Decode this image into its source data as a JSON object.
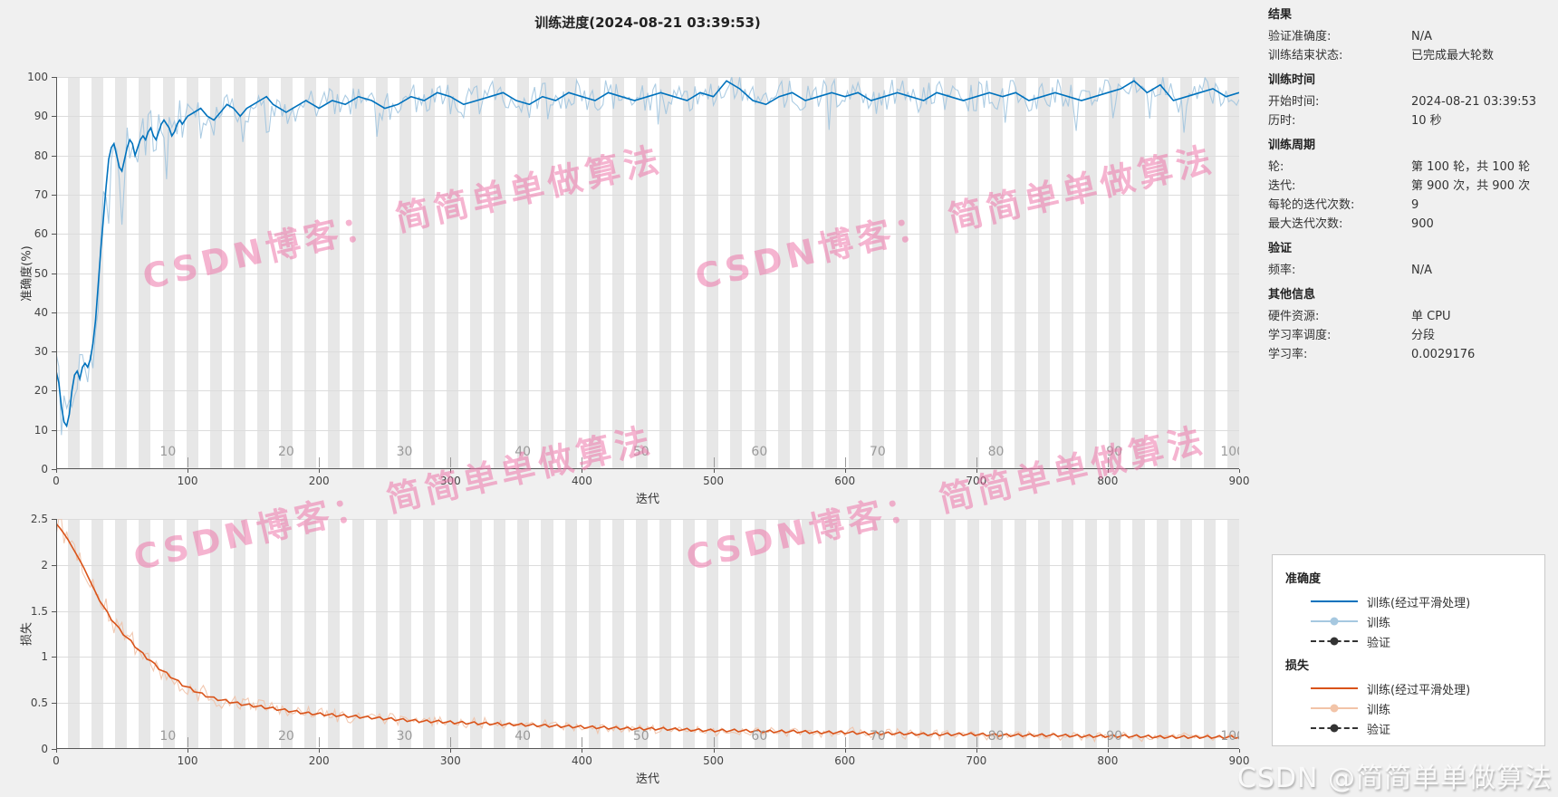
{
  "title": "训练进度(2024-08-21 03:39:53)",
  "watermark": {
    "diagonal_text": "CSDN博客： 简简单单做算法",
    "corner_text": "CSDN @简简单单做算法",
    "diagonal_color": "rgba(236,118,170,0.55)"
  },
  "results_panel": {
    "sections": [
      {
        "heading": "结果",
        "rows": [
          {
            "label": "验证准确度:",
            "value": "N/A"
          },
          {
            "label": "训练结束状态:",
            "value": "已完成最大轮数"
          }
        ]
      },
      {
        "heading": "训练时间",
        "rows": [
          {
            "label": "开始时间:",
            "value": "2024-08-21 03:39:53"
          },
          {
            "label": "历时:",
            "value": "10 秒"
          }
        ]
      },
      {
        "heading": "训练周期",
        "rows": [
          {
            "label": "轮:",
            "value": "第 100 轮，共 100 轮"
          },
          {
            "label": "迭代:",
            "value": "第 900 次，共 900 次"
          },
          {
            "label": "每轮的迭代次数:",
            "value": "9"
          },
          {
            "label": "最大迭代次数:",
            "value": "900"
          }
        ]
      },
      {
        "heading": "验证",
        "rows": [
          {
            "label": "频率:",
            "value": "N/A"
          }
        ]
      },
      {
        "heading": "其他信息",
        "rows": [
          {
            "label": "硬件资源:",
            "value": "单 CPU"
          },
          {
            "label": "学习率调度:",
            "value": "分段"
          },
          {
            "label": "学习率:",
            "value": "0.0029176"
          }
        ]
      }
    ]
  },
  "legend": {
    "groups": [
      {
        "heading": "准确度",
        "items": [
          {
            "label": "训练(经过平滑处理)",
            "style": "solid",
            "color": "#0072BD"
          },
          {
            "label": "训练",
            "style": "marker",
            "color": "#a6c8e0"
          },
          {
            "label": "验证",
            "style": "dashed-marker",
            "color": "#333333"
          }
        ]
      },
      {
        "heading": "损失",
        "items": [
          {
            "label": "训练(经过平滑处理)",
            "style": "solid",
            "color": "#D95319"
          },
          {
            "label": "训练",
            "style": "marker",
            "color": "#f2c4a8"
          },
          {
            "label": "验证",
            "style": "dashed-marker",
            "color": "#333333"
          }
        ]
      }
    ]
  },
  "chart_data": [
    {
      "id": "accuracy",
      "type": "line",
      "title": "训练进度(2024-08-21 03:39:53)",
      "xlabel": "迭代",
      "ylabel": "准确度(%)",
      "xlim": [
        0,
        900
      ],
      "ylim": [
        0,
        100
      ],
      "xticks": [
        0,
        100,
        200,
        300,
        400,
        500,
        600,
        700,
        800,
        900
      ],
      "yticks": [
        0,
        10,
        20,
        30,
        40,
        50,
        60,
        70,
        80,
        90,
        100
      ],
      "epochs": 100,
      "epoch_labels": [
        10,
        20,
        30,
        40,
        50,
        60,
        70,
        80,
        90,
        100
      ],
      "grid": "horizontal",
      "series": [
        {
          "name": "训练(经过平滑处理)",
          "color": "#0072BD",
          "width": 1.6,
          "role": "smoothed",
          "points": [
            [
              0,
              25
            ],
            [
              2,
              22
            ],
            [
              4,
              16
            ],
            [
              6,
              12
            ],
            [
              8,
              11
            ],
            [
              10,
              14
            ],
            [
              12,
              20
            ],
            [
              14,
              24
            ],
            [
              16,
              25
            ],
            [
              18,
              23
            ],
            [
              20,
              26
            ],
            [
              22,
              27
            ],
            [
              24,
              26
            ],
            [
              26,
              28
            ],
            [
              28,
              32
            ],
            [
              30,
              38
            ],
            [
              32,
              47
            ],
            [
              34,
              56
            ],
            [
              36,
              64
            ],
            [
              38,
              72
            ],
            [
              40,
              79
            ],
            [
              42,
              82
            ],
            [
              44,
              83
            ],
            [
              46,
              80
            ],
            [
              48,
              77
            ],
            [
              50,
              76
            ],
            [
              52,
              79
            ],
            [
              54,
              82
            ],
            [
              56,
              84
            ],
            [
              58,
              83
            ],
            [
              60,
              80
            ],
            [
              62,
              82
            ],
            [
              64,
              84
            ],
            [
              66,
              85
            ],
            [
              68,
              84
            ],
            [
              70,
              86
            ],
            [
              72,
              87
            ],
            [
              74,
              85
            ],
            [
              76,
              84
            ],
            [
              78,
              86
            ],
            [
              80,
              88
            ],
            [
              82,
              89
            ],
            [
              84,
              88
            ],
            [
              86,
              87
            ],
            [
              88,
              85
            ],
            [
              90,
              86
            ],
            [
              92,
              88
            ],
            [
              94,
              89
            ],
            [
              96,
              88
            ],
            [
              98,
              89
            ],
            [
              100,
              90
            ],
            [
              105,
              91
            ],
            [
              110,
              92
            ],
            [
              115,
              90
            ],
            [
              120,
              89
            ],
            [
              125,
              91
            ],
            [
              130,
              93
            ],
            [
              135,
              92
            ],
            [
              140,
              90
            ],
            [
              145,
              92
            ],
            [
              150,
              93
            ],
            [
              155,
              94
            ],
            [
              160,
              95
            ],
            [
              165,
              93
            ],
            [
              170,
              92
            ],
            [
              175,
              91
            ],
            [
              180,
              92
            ],
            [
              185,
              93
            ],
            [
              190,
              94
            ],
            [
              195,
              93
            ],
            [
              200,
              92
            ],
            [
              210,
              94
            ],
            [
              220,
              93
            ],
            [
              230,
              95
            ],
            [
              240,
              94
            ],
            [
              250,
              92
            ],
            [
              260,
              93
            ],
            [
              270,
              95
            ],
            [
              280,
              94
            ],
            [
              290,
              96
            ],
            [
              300,
              95
            ],
            [
              310,
              93
            ],
            [
              320,
              94
            ],
            [
              330,
              95
            ],
            [
              340,
              96
            ],
            [
              350,
              94
            ],
            [
              360,
              93
            ],
            [
              370,
              95
            ],
            [
              380,
              94
            ],
            [
              390,
              96
            ],
            [
              400,
              95
            ],
            [
              410,
              94
            ],
            [
              420,
              96
            ],
            [
              430,
              95
            ],
            [
              440,
              94
            ],
            [
              450,
              95
            ],
            [
              460,
              96
            ],
            [
              470,
              95
            ],
            [
              480,
              94
            ],
            [
              490,
              96
            ],
            [
              500,
              95
            ],
            [
              510,
              99
            ],
            [
              520,
              97
            ],
            [
              530,
              94
            ],
            [
              540,
              93
            ],
            [
              550,
              95
            ],
            [
              560,
              96
            ],
            [
              570,
              94
            ],
            [
              580,
              95
            ],
            [
              590,
              96
            ],
            [
              600,
              95
            ],
            [
              610,
              96
            ],
            [
              620,
              94
            ],
            [
              630,
              95
            ],
            [
              640,
              96
            ],
            [
              650,
              95
            ],
            [
              660,
              94
            ],
            [
              670,
              96
            ],
            [
              680,
              95
            ],
            [
              690,
              94
            ],
            [
              700,
              95
            ],
            [
              710,
              96
            ],
            [
              720,
              95
            ],
            [
              730,
              96
            ],
            [
              740,
              94
            ],
            [
              750,
              95
            ],
            [
              760,
              96
            ],
            [
              770,
              95
            ],
            [
              780,
              94
            ],
            [
              790,
              95
            ],
            [
              800,
              96
            ],
            [
              810,
              97
            ],
            [
              820,
              99
            ],
            [
              830,
              96
            ],
            [
              840,
              98
            ],
            [
              850,
              94
            ],
            [
              860,
              95
            ],
            [
              870,
              96
            ],
            [
              880,
              97
            ],
            [
              890,
              95
            ],
            [
              900,
              96
            ]
          ]
        },
        {
          "name": "训练",
          "color": "#9dc3de",
          "width": 1.1,
          "role": "raw-noisy"
        }
      ]
    },
    {
      "id": "loss",
      "type": "line",
      "title": "",
      "xlabel": "迭代",
      "ylabel": "损失",
      "xlim": [
        0,
        900
      ],
      "ylim": [
        0,
        2.5
      ],
      "xticks": [
        0,
        100,
        200,
        300,
        400,
        500,
        600,
        700,
        800,
        900
      ],
      "yticks": [
        0,
        0.5,
        1,
        1.5,
        2,
        2.5
      ],
      "epochs": 100,
      "epoch_labels": [
        10,
        20,
        30,
        40,
        50,
        60,
        70,
        80,
        90,
        100
      ],
      "grid": "horizontal",
      "series": [
        {
          "name": "训练(经过平滑处理)",
          "color": "#D95319",
          "width": 1.6,
          "role": "smoothed",
          "points": [
            [
              0,
              2.45
            ],
            [
              4,
              2.38
            ],
            [
              8,
              2.3
            ],
            [
              12,
              2.2
            ],
            [
              16,
              2.1
            ],
            [
              20,
              2.0
            ],
            [
              24,
              1.88
            ],
            [
              28,
              1.76
            ],
            [
              32,
              1.65
            ],
            [
              36,
              1.55
            ],
            [
              40,
              1.45
            ],
            [
              44,
              1.38
            ],
            [
              48,
              1.3
            ],
            [
              52,
              1.24
            ],
            [
              56,
              1.18
            ],
            [
              60,
              1.12
            ],
            [
              64,
              1.06
            ],
            [
              68,
              1.0
            ],
            [
              72,
              0.96
            ],
            [
              76,
              0.9
            ],
            [
              80,
              0.86
            ],
            [
              84,
              0.82
            ],
            [
              88,
              0.78
            ],
            [
              92,
              0.74
            ],
            [
              96,
              0.7
            ],
            [
              100,
              0.67
            ],
            [
              110,
              0.6
            ],
            [
              120,
              0.55
            ],
            [
              130,
              0.52
            ],
            [
              140,
              0.49
            ],
            [
              150,
              0.47
            ],
            [
              160,
              0.45
            ],
            [
              170,
              0.43
            ],
            [
              180,
              0.41
            ],
            [
              190,
              0.39
            ],
            [
              200,
              0.38
            ],
            [
              210,
              0.37
            ],
            [
              220,
              0.36
            ],
            [
              230,
              0.35
            ],
            [
              240,
              0.34
            ],
            [
              250,
              0.33
            ],
            [
              260,
              0.32
            ],
            [
              270,
              0.31
            ],
            [
              280,
              0.3
            ],
            [
              290,
              0.3
            ],
            [
              300,
              0.29
            ],
            [
              320,
              0.28
            ],
            [
              340,
              0.27
            ],
            [
              360,
              0.26
            ],
            [
              380,
              0.25
            ],
            [
              400,
              0.24
            ],
            [
              420,
              0.23
            ],
            [
              440,
              0.22
            ],
            [
              460,
              0.22
            ],
            [
              480,
              0.21
            ],
            [
              500,
              0.2
            ],
            [
              520,
              0.2
            ],
            [
              540,
              0.19
            ],
            [
              560,
              0.19
            ],
            [
              580,
              0.18
            ],
            [
              600,
              0.18
            ],
            [
              620,
              0.17
            ],
            [
              640,
              0.17
            ],
            [
              660,
              0.16
            ],
            [
              680,
              0.16
            ],
            [
              700,
              0.16
            ],
            [
              720,
              0.15
            ],
            [
              740,
              0.15
            ],
            [
              760,
              0.15
            ],
            [
              780,
              0.14
            ],
            [
              800,
              0.14
            ],
            [
              820,
              0.14
            ],
            [
              840,
              0.13
            ],
            [
              860,
              0.13
            ],
            [
              880,
              0.13
            ],
            [
              900,
              0.13
            ]
          ]
        },
        {
          "name": "训练",
          "color": "#f0bfa4",
          "width": 1.1,
          "role": "raw-noisy"
        }
      ]
    }
  ]
}
